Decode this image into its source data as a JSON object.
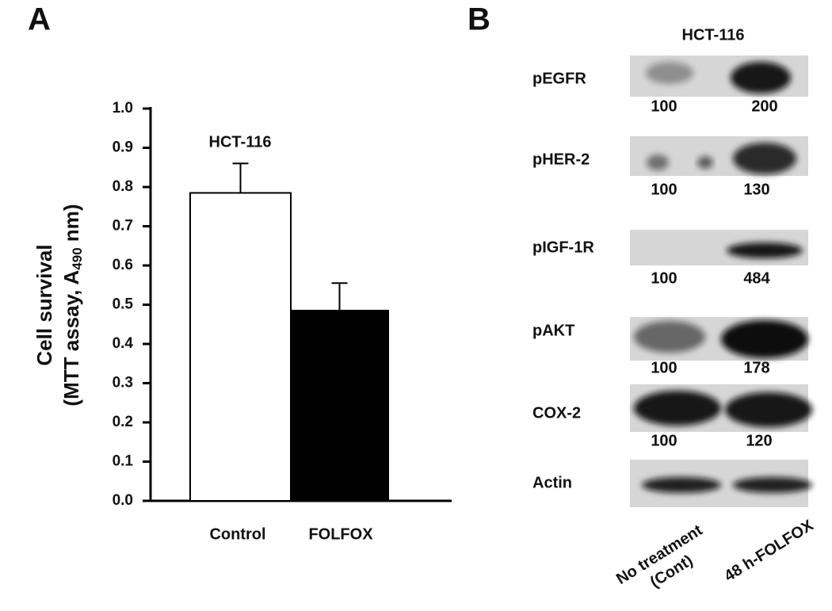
{
  "chart_data": {
    "type": "bar",
    "panel": "A",
    "annotation": "HCT-116",
    "y_label": {
      "line1": "Cell survival",
      "line2": [
        "(MTT assay, A",
        "490",
        " nm)"
      ]
    },
    "categories": [
      "Control",
      "FOLFOX"
    ],
    "values": [
      0.785,
      0.485
    ],
    "errors": [
      0.075,
      0.07
    ],
    "colors": [
      "#ffffff",
      "#000000"
    ],
    "edge_color": "#000000",
    "ylim": [
      0,
      1.0
    ],
    "yticks": [
      {
        "value": 0,
        "label": "0.0"
      },
      0.1,
      0.2,
      0.3,
      0.4,
      0.5,
      0.6,
      0.7,
      0.8,
      0.9,
      {
        "value": 1.0,
        "label": "1.0"
      }
    ],
    "grid": false
  },
  "blot": {
    "panel": "B",
    "title": "HCT-116",
    "rows": [
      {
        "label": "pEGFR",
        "values": [
          100,
          200
        ]
      },
      {
        "label": "pHER-2",
        "values": [
          100,
          130
        ]
      },
      {
        "label": "pIGF-1R",
        "values": [
          100,
          484
        ]
      },
      {
        "label": "pAKT",
        "values": [
          100,
          178
        ]
      },
      {
        "label": "COX-2",
        "values": [
          100,
          120
        ]
      },
      {
        "label": "Actin"
      }
    ],
    "lanes": [
      [
        "No treatment",
        "(Cont)"
      ],
      [
        "48 h-FOLFOX"
      ]
    ]
  }
}
